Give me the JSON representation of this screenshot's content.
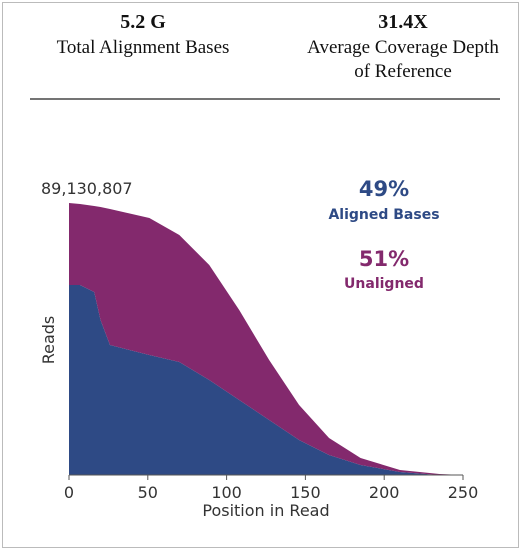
{
  "header": {
    "stats": [
      {
        "value": "5.2 G",
        "label": "Total Alignment Bases"
      },
      {
        "value": "31.4X",
        "label": "Average Coverage Depth of Reference"
      }
    ]
  },
  "chart_data": {
    "type": "stacked_area",
    "x": [
      0,
      7,
      16,
      20,
      26,
      51,
      70,
      89,
      108,
      127,
      146,
      165,
      185,
      210,
      235,
      250
    ],
    "series": [
      {
        "name": "Aligned Bases",
        "color": "#2e4a85",
        "values": [
          62260000,
          62260000,
          59967000,
          50791000,
          42599000,
          39322000,
          37029000,
          31130000,
          24577000,
          18023000,
          11469000,
          6554000,
          3277000,
          983000,
          0,
          0
        ]
      },
      {
        "name": "Unaligned",
        "color": "#83296d",
        "values": [
          26870000,
          26543000,
          28181000,
          37029000,
          44565000,
          44893000,
          41616000,
          37684000,
          29492000,
          19661000,
          11469000,
          5571000,
          2294000,
          655000,
          328000,
          0
        ]
      }
    ],
    "annotations": [
      "49%",
      "51%"
    ],
    "xlabel": "Position in Read",
    "ylabel": "Reads",
    "xlim": [
      0,
      250
    ],
    "xticks": [
      0,
      50,
      100,
      150,
      200,
      250
    ],
    "ylim": [
      0,
      89130807
    ],
    "yticks": [
      {
        "value": 89130807,
        "label": "89,130,807"
      }
    ]
  }
}
